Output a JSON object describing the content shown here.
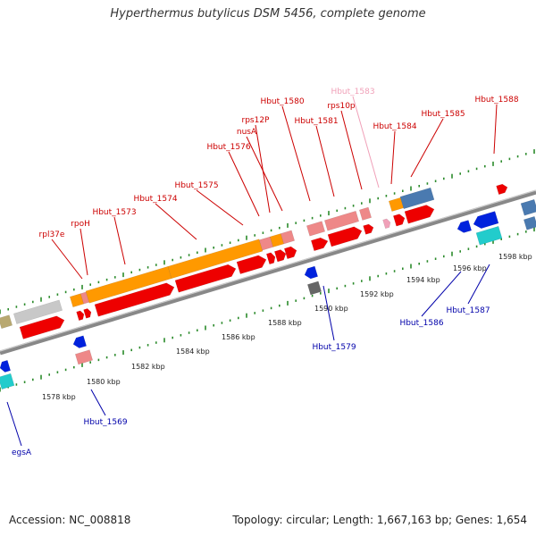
{
  "title": "Hyperthermus butylicus DSM 5456, complete genome",
  "footer": {
    "accession": "Accession: NC_008818",
    "topology": "Topology: circular; Length: 1,667,163 bp; Genes: 1,654"
  },
  "colors": {
    "forward_label": "#cc0000",
    "reverse_label": "#0000aa",
    "faded_label": "#f0a0b8",
    "backbone": "#888888",
    "tick": "#2a8a2a",
    "cds_red": "#ee0000",
    "cds_blue": "#0022dd",
    "rrna_orange": "#ff9900",
    "pseudo_pink": "#ee8888",
    "gray": "#c8c8c8",
    "steel": "#4a7ab0",
    "cyan": "#22cccc",
    "olive": "#b8a870",
    "dark_gray": "#666666"
  },
  "map": {
    "scale_labels": [
      "1578 kbp",
      "1580 kbp",
      "1582 kbp",
      "1584 kbp",
      "1586 kbp",
      "1588 kbp",
      "1590 kbp",
      "1592 kbp",
      "1594 kbp",
      "1596 kbp",
      "1598 kbp"
    ],
    "forward_labels": [
      "rpl37e",
      "rpoH",
      "Hbut_1573",
      "Hbut_1574",
      "Hbut_1575",
      "Hbut_1576",
      "rps12P",
      "nusA",
      "Hbut_1580",
      "Hbut_1581",
      "rps10p",
      "Hbut_1584",
      "Hbut_1585",
      "Hbut_1588"
    ],
    "faded_labels": [
      "Hbut_1583"
    ],
    "reverse_labels": [
      "egsA",
      "Hbut_1569",
      "Hbut_1579",
      "Hbut_1586",
      "Hbut_1587"
    ]
  }
}
